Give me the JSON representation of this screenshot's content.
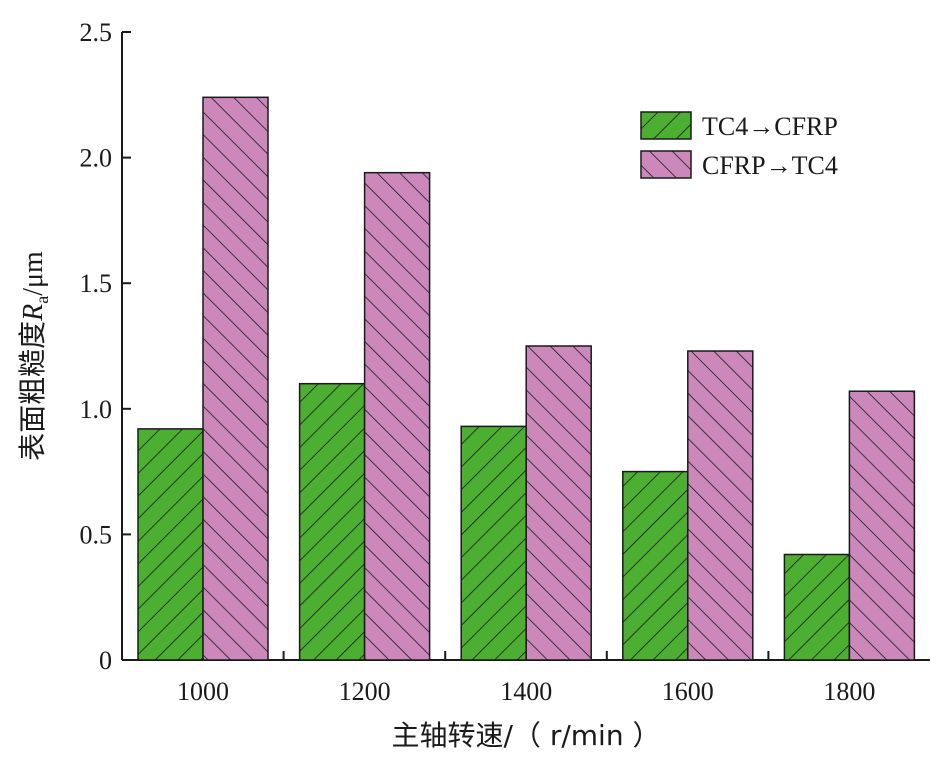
{
  "chart_data": {
    "type": "bar",
    "categories": [
      "1000",
      "1200",
      "1400",
      "1600",
      "1800"
    ],
    "series": [
      {
        "name": "TC4→CFRP",
        "color": "#4caf32",
        "hatch": "forward-diagonal",
        "values": [
          0.92,
          1.1,
          0.93,
          0.75,
          0.42
        ]
      },
      {
        "name": "CFRP→TC4",
        "color": "#cc88bb",
        "hatch": "back-diagonal",
        "values": [
          2.24,
          1.94,
          1.25,
          1.23,
          1.07
        ]
      }
    ],
    "xlabel": "主轴转速/（ r/min ）",
    "ylabel_prefix": "表面粗糙度",
    "ylabel_symbol": "R",
    "ylabel_subscript": "a",
    "ylabel_unit": "/μm",
    "ylim": [
      0,
      2.5
    ],
    "yticks": [
      0,
      0.5,
      1.0,
      1.5,
      2.0,
      2.5
    ],
    "ytick_labels": [
      "0",
      "0.5",
      "1.0",
      "1.5",
      "2.0",
      "2.5"
    ],
    "legend_position": "top-right",
    "grid": false
  }
}
